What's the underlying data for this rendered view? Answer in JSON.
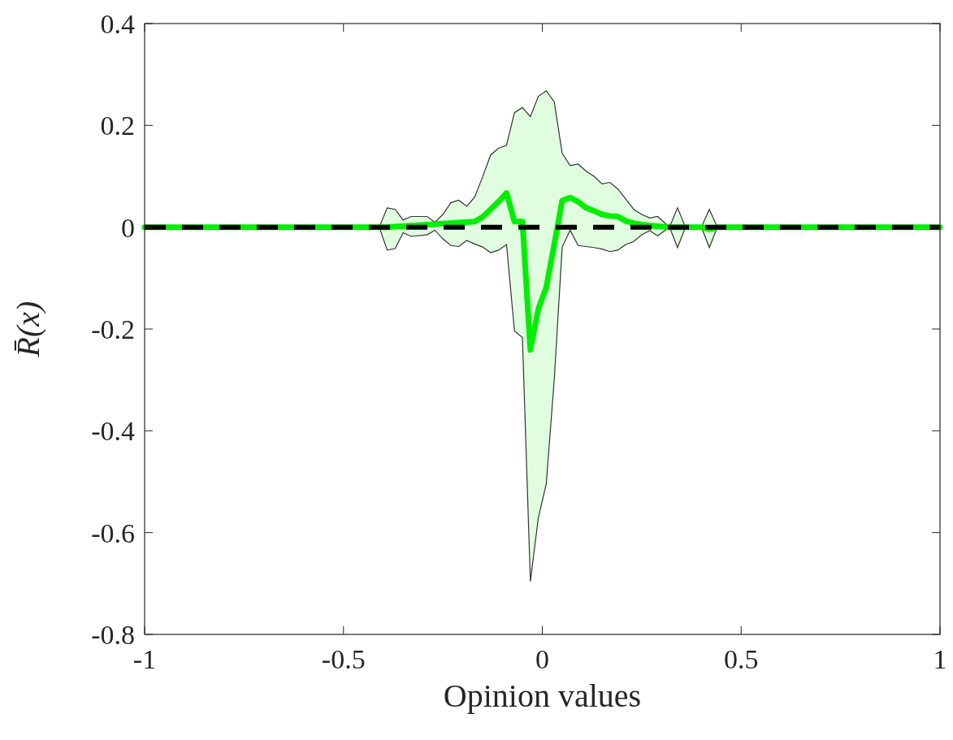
{
  "chart_data": {
    "type": "line",
    "xlabel": "Opinion values",
    "ylabel": "R̄(x)",
    "xlim": [
      -1,
      1
    ],
    "xticks": [
      -1,
      -0.5,
      0,
      0.5,
      1
    ],
    "ylim": [
      -0.8,
      0.4
    ],
    "yticks": [
      -0.8,
      -0.6,
      -0.4,
      -0.2,
      0,
      0.2,
      0.4
    ],
    "grid": false,
    "marker": "none",
    "line_style": "solid",
    "series": [
      {
        "color": "#00ee00",
        "x": [
          -1,
          -0.41,
          -0.39,
          -0.37,
          -0.35,
          -0.33,
          -0.29,
          -0.27,
          -0.25,
          -0.23,
          -0.21,
          -0.19,
          -0.17,
          -0.15,
          -0.13,
          -0.11,
          -0.09,
          -0.07,
          -0.05,
          -0.03,
          -0.01,
          0.01,
          0.03,
          0.05,
          0.07,
          0.09,
          0.11,
          0.13,
          0.15,
          0.17,
          0.19,
          0.21,
          0.23,
          0.25,
          0.27,
          0.29,
          0.32,
          0.34,
          0.36,
          0.4,
          0.42,
          0.44,
          1
        ],
        "values": [
          0,
          0,
          0,
          0.001,
          0.002,
          0.003,
          0.005,
          0.006,
          0.007,
          0.008,
          0.009,
          0.01,
          0.011,
          0.02,
          0.035,
          0.05,
          0.067,
          0.011,
          0.011,
          -0.241,
          -0.161,
          -0.118,
          -0.034,
          0.052,
          0.058,
          0.05,
          0.038,
          0.032,
          0.025,
          0.022,
          0.021,
          0.012,
          0.008,
          0.005,
          0.003,
          0.002,
          0,
          0,
          0,
          0,
          -0.004,
          0,
          0
        ],
        "lower": [
          0,
          0,
          -0.045,
          -0.042,
          -0.011,
          -0.018,
          -0.015,
          -0.006,
          -0.023,
          -0.036,
          -0.038,
          -0.026,
          -0.033,
          -0.039,
          -0.05,
          -0.045,
          -0.034,
          -0.204,
          -0.217,
          -0.696,
          -0.571,
          -0.504,
          -0.3,
          -0.039,
          -0.006,
          -0.036,
          -0.038,
          -0.04,
          -0.043,
          -0.048,
          -0.045,
          -0.034,
          -0.028,
          -0.015,
          -0.007,
          -0.017,
          0,
          -0.04,
          0,
          0,
          -0.04,
          0,
          0
        ],
        "upper": [
          0,
          0,
          0.038,
          0.035,
          0.014,
          0.021,
          0.021,
          0.01,
          0.025,
          0.048,
          0.053,
          0.041,
          0.059,
          0.099,
          0.142,
          0.155,
          0.161,
          0.225,
          0.235,
          0.217,
          0.257,
          0.268,
          0.246,
          0.145,
          0.121,
          0.124,
          0.11,
          0.1,
          0.085,
          0.088,
          0.075,
          0.055,
          0.035,
          0.025,
          0.018,
          0.021,
          0,
          0.038,
          0,
          0,
          0.035,
          0,
          0
        ]
      }
    ],
    "ref_lines": [
      {
        "axis": "y",
        "value": 0,
        "color": "#000000",
        "line_style": "dashed"
      }
    ]
  }
}
